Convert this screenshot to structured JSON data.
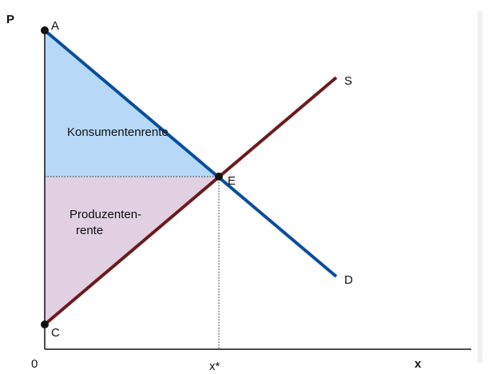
{
  "axes": {
    "y_label": "P",
    "x_label": "x",
    "origin_label": "0"
  },
  "points": {
    "a": "A",
    "c": "C",
    "e": "E"
  },
  "curves": {
    "supply": "S",
    "demand": "D"
  },
  "areas": {
    "consumer_surplus": "Konsumentenrente",
    "producer_surplus_line1": "Produzenten-",
    "producer_surplus_line2": "rente"
  },
  "equilibrium_quantity": "x*",
  "colors": {
    "demand_line": "#0a4f9e",
    "supply_line": "#6b1b1f",
    "consumer_area": "#b7d9f7",
    "producer_area": "#e1cfe2"
  }
}
